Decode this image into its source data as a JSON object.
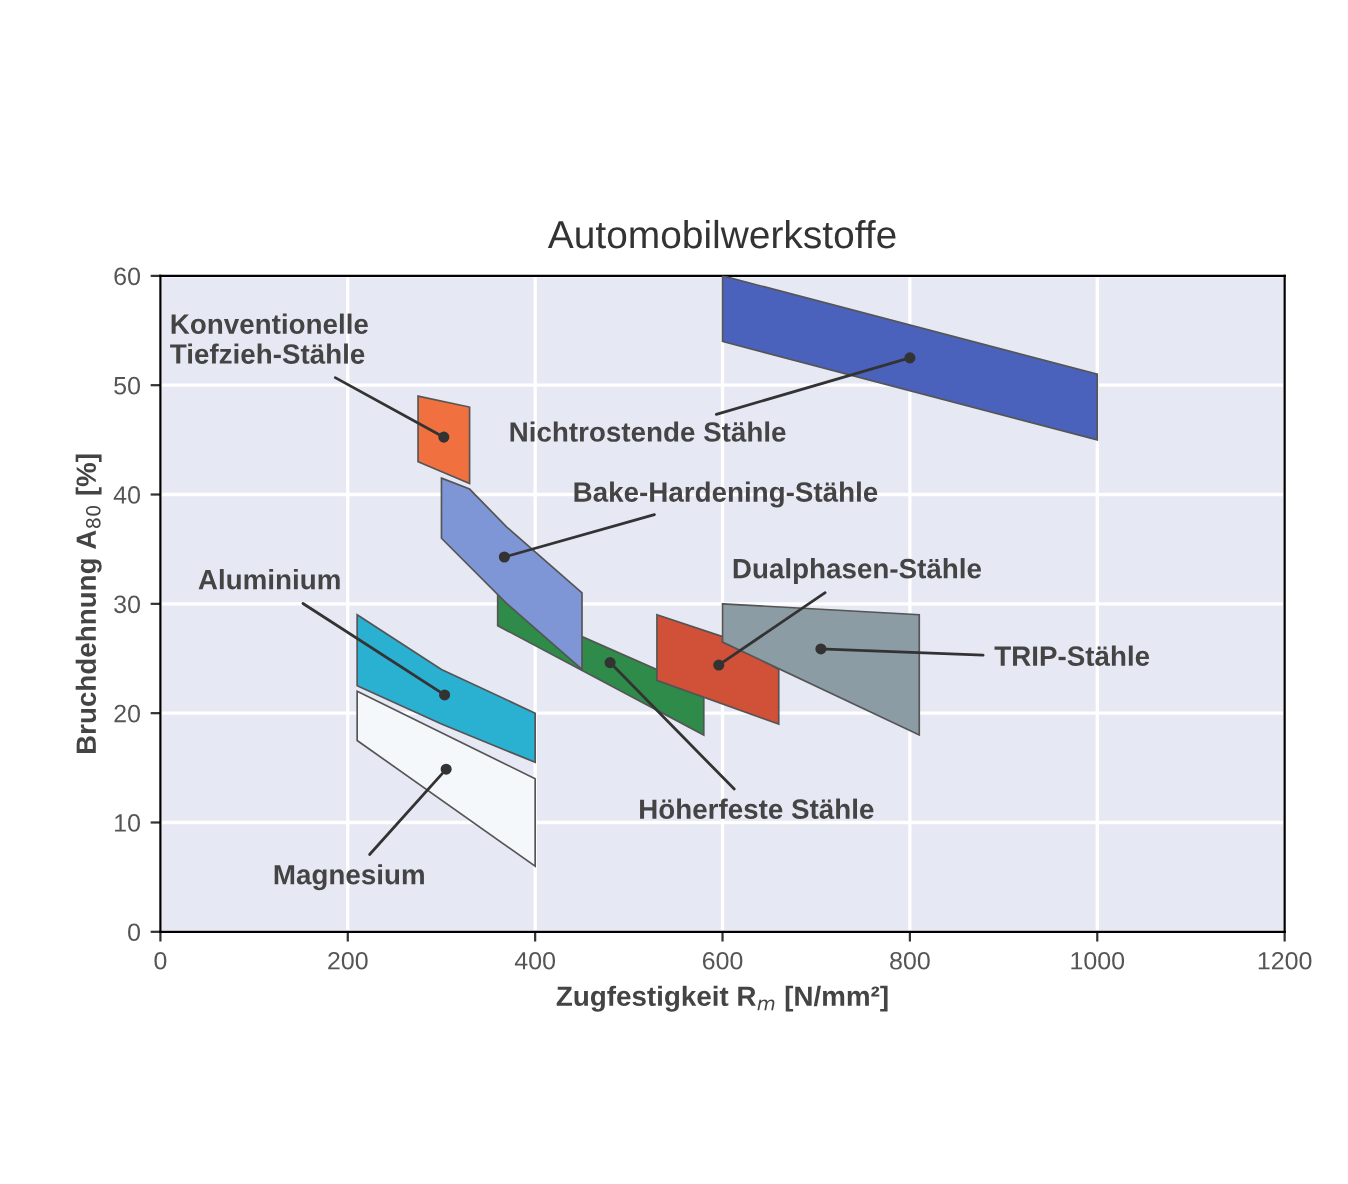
{
  "chart_data": {
    "type": "area",
    "title": "Automobilwerkstoffe",
    "xlabel": "Zugfestigkeit R$_{m}$ [N/mm²]",
    "ylabel": "Bruchdehnung A$_{80}$ [%]",
    "xlim": [
      0,
      1200
    ],
    "ylim": [
      0,
      60
    ],
    "xticks": [
      0,
      200,
      400,
      600,
      800,
      1000,
      1200
    ],
    "yticks": [
      0,
      10,
      20,
      30,
      40,
      50,
      60
    ],
    "grid": true,
    "legend": false,
    "series": [
      {
        "name": "Magnesium",
        "color": "#f4f8fa",
        "x": [
          210,
          400,
          400,
          210
        ],
        "values": [
          22,
          14,
          6,
          17.5
        ]
      },
      {
        "name": "Aluminium",
        "color": "#2ab0d0",
        "x": [
          210,
          300,
          400,
          400,
          300,
          210
        ],
        "values": [
          29,
          24,
          20,
          15.5,
          19,
          22.5
        ]
      },
      {
        "name": "Höherfeste Stähle",
        "color": "#2e8b4a",
        "x": [
          360,
          450,
          450,
          530,
          530,
          580,
          580,
          360
        ],
        "values": [
          31,
          24.5,
          27,
          24,
          23,
          21.5,
          18,
          28
        ]
      },
      {
        "name": "Bake-Hardening-Stähle",
        "color": "#7f96d6",
        "x": [
          300,
          330,
          370,
          450,
          450,
          370,
          300
        ],
        "values": [
          41.5,
          40.5,
          37,
          31,
          24,
          30,
          36
        ]
      },
      {
        "name": "Konventionelle\nTiefzieh-Stähle",
        "color": "#f07040",
        "x": [
          275,
          330,
          330,
          275
        ],
        "values": [
          49,
          48,
          41,
          43
        ]
      },
      {
        "name": "Dualphasen-Stähle",
        "color": "#d05038",
        "x": [
          530,
          600,
          660,
          660,
          530
        ],
        "values": [
          29,
          27,
          24,
          19,
          23
        ]
      },
      {
        "name": "TRIP-Stähle",
        "color": "#8c9ca4",
        "x": [
          600,
          810,
          810,
          600
        ],
        "values": [
          30,
          29,
          18,
          26.5
        ]
      },
      {
        "name": "Nichtrostende Stähle",
        "color": "#4a62bc",
        "x": [
          600,
          1000,
          1000,
          600
        ],
        "values": [
          60,
          51,
          45,
          54
        ]
      }
    ]
  }
}
